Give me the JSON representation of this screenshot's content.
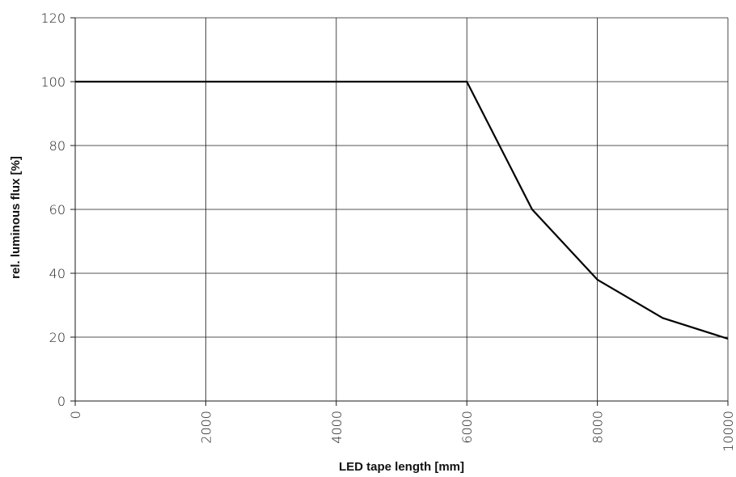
{
  "chart_data": {
    "type": "line",
    "title": "",
    "xlabel": "LED tape length [mm]",
    "ylabel": "rel. luminous flux [%]",
    "xlim": [
      0,
      10000
    ],
    "ylim": [
      0,
      120
    ],
    "xticks": [
      0,
      2000,
      4000,
      6000,
      8000,
      10000
    ],
    "yticks": [
      0,
      20,
      40,
      60,
      80,
      100,
      120
    ],
    "grid": true,
    "legend": "none",
    "series": [
      {
        "color": "#000000",
        "x": [
          0,
          6000,
          7000,
          8000,
          9000,
          10000
        ],
        "y": [
          100,
          100,
          60,
          38,
          26,
          19.5
        ]
      }
    ]
  }
}
